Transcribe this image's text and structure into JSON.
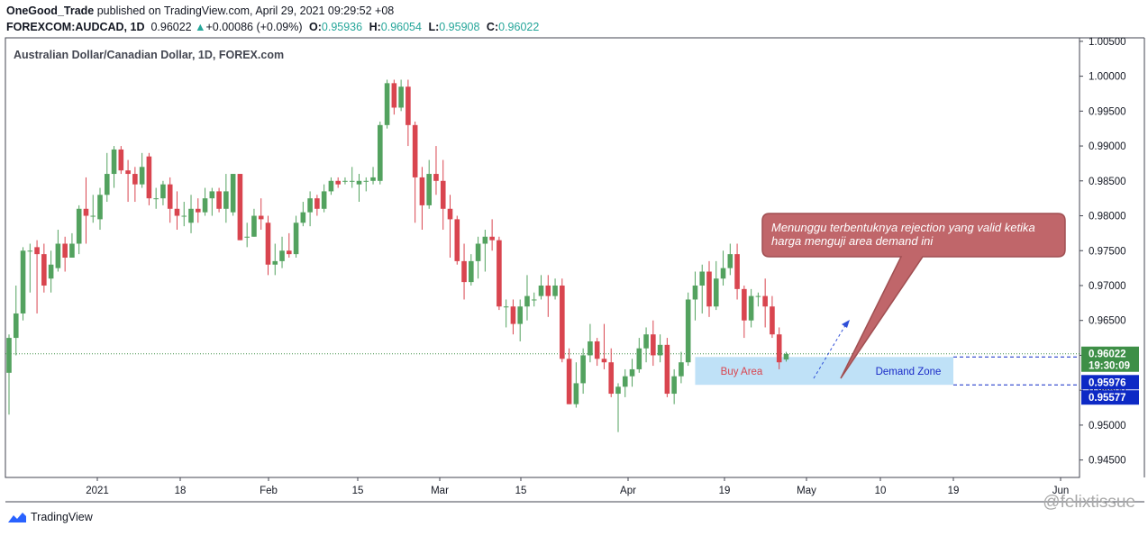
{
  "header": {
    "author": "OneGood_Trade",
    "published_text": "published on TradingView.com, April 29, 2021 09:29:52 +08",
    "symbol_line": "FOREXCOM:AUDCAD, 1D",
    "last": "0.96022",
    "change": "+0.00086 (+0.09%)",
    "o_label": "O:",
    "o": "0.95936",
    "h_label": "H:",
    "h": "0.96054",
    "l_label": "L:",
    "l": "0.95908",
    "c_label": "C:",
    "c": "0.96022"
  },
  "chart_data": {
    "type": "candlestick",
    "title": "Australian Dollar/Canadian Dollar, 1D, FOREX.com",
    "ylim": [
      0.9425,
      1.0055
    ],
    "y_ticks": [
      "1.00500",
      "1.00000",
      "0.99500",
      "0.99000",
      "0.98500",
      "0.98000",
      "0.97500",
      "0.97000",
      "0.96500",
      "0.96000",
      "0.95500",
      "0.95000",
      "0.94500"
    ],
    "x_ticks": [
      "2021",
      "18",
      "Feb",
      "15",
      "Mar",
      "15",
      "Apr",
      "19",
      "May",
      "10",
      "19",
      "Jun"
    ],
    "grid": false,
    "candles": [
      [
        0.9575,
        0.9625,
        0.9515,
        0.963
      ],
      [
        0.9625,
        0.966,
        0.96,
        0.97
      ],
      [
        0.966,
        0.975,
        0.965,
        0.9755
      ],
      [
        0.975,
        0.975,
        0.969,
        0.976
      ],
      [
        0.9755,
        0.9745,
        0.966,
        0.9765
      ],
      [
        0.9745,
        0.97,
        0.969,
        0.976
      ],
      [
        0.971,
        0.973,
        0.969,
        0.975
      ],
      [
        0.9725,
        0.976,
        0.972,
        0.978
      ],
      [
        0.976,
        0.974,
        0.972,
        0.977
      ],
      [
        0.974,
        0.976,
        0.974,
        0.9775
      ],
      [
        0.976,
        0.981,
        0.9745,
        0.9815
      ],
      [
        0.981,
        0.98,
        0.976,
        0.9855
      ],
      [
        0.98,
        0.98,
        0.979,
        0.983
      ],
      [
        0.9795,
        0.983,
        0.978,
        0.984
      ],
      [
        0.983,
        0.986,
        0.982,
        0.989
      ],
      [
        0.986,
        0.9895,
        0.984,
        0.99
      ],
      [
        0.9895,
        0.9865,
        0.986,
        0.99
      ],
      [
        0.9865,
        0.986,
        0.982,
        0.988
      ],
      [
        0.986,
        0.9845,
        0.982,
        0.987
      ],
      [
        0.9845,
        0.987,
        0.984,
        0.989
      ],
      [
        0.9885,
        0.9825,
        0.9815,
        0.989
      ],
      [
        0.9825,
        0.9825,
        0.981,
        0.984
      ],
      [
        0.9825,
        0.9845,
        0.9815,
        0.985
      ],
      [
        0.9845,
        0.981,
        0.979,
        0.9855
      ],
      [
        0.981,
        0.98,
        0.978,
        0.9835
      ],
      [
        0.98,
        0.98,
        0.9785,
        0.982
      ],
      [
        0.979,
        0.981,
        0.9775,
        0.983
      ],
      [
        0.981,
        0.9805,
        0.979,
        0.9825
      ],
      [
        0.9805,
        0.9825,
        0.98,
        0.984
      ],
      [
        0.9825,
        0.9835,
        0.98,
        0.984
      ],
      [
        0.9835,
        0.981,
        0.9805,
        0.984
      ],
      [
        0.981,
        0.9835,
        0.979,
        0.986
      ],
      [
        0.9805,
        0.986,
        0.98,
        0.986
      ],
      [
        0.986,
        0.9765,
        0.9765,
        0.986
      ],
      [
        0.977,
        0.977,
        0.9755,
        0.979
      ],
      [
        0.977,
        0.98,
        0.977,
        0.981
      ],
      [
        0.98,
        0.9795,
        0.978,
        0.9825
      ],
      [
        0.979,
        0.973,
        0.9715,
        0.98
      ],
      [
        0.973,
        0.9735,
        0.9715,
        0.976
      ],
      [
        0.9735,
        0.975,
        0.9725,
        0.977
      ],
      [
        0.975,
        0.9745,
        0.974,
        0.9775
      ],
      [
        0.9745,
        0.979,
        0.974,
        0.98
      ],
      [
        0.979,
        0.9805,
        0.9785,
        0.982
      ],
      [
        0.9805,
        0.9825,
        0.9785,
        0.9835
      ],
      [
        0.9825,
        0.981,
        0.98,
        0.983
      ],
      [
        0.981,
        0.9835,
        0.9805,
        0.9845
      ],
      [
        0.9835,
        0.985,
        0.983,
        0.9855
      ],
      [
        0.985,
        0.9845,
        0.984,
        0.9855
      ],
      [
        0.985,
        0.985,
        0.9845,
        0.9855
      ],
      [
        0.985,
        0.985,
        0.984,
        0.987
      ],
      [
        0.9845,
        0.985,
        0.982,
        0.986
      ],
      [
        0.985,
        0.985,
        0.9835,
        0.9855
      ],
      [
        0.985,
        0.9855,
        0.9845,
        0.987
      ],
      [
        0.985,
        0.993,
        0.9845,
        0.9935
      ],
      [
        0.993,
        0.999,
        0.9925,
        0.9995
      ],
      [
        0.999,
        0.9955,
        0.9945,
        0.9995
      ],
      [
        0.9955,
        0.9985,
        0.995,
        0.9995
      ],
      [
        0.9985,
        0.993,
        0.99,
        0.9995
      ],
      [
        0.993,
        0.9855,
        0.979,
        0.9935
      ],
      [
        0.9855,
        0.9815,
        0.978,
        0.987
      ],
      [
        0.9815,
        0.986,
        0.981,
        0.988
      ],
      [
        0.986,
        0.985,
        0.983,
        0.99
      ],
      [
        0.985,
        0.981,
        0.978,
        0.988
      ],
      [
        0.981,
        0.9795,
        0.974,
        0.983
      ],
      [
        0.9795,
        0.9735,
        0.973,
        0.98
      ],
      [
        0.9735,
        0.9705,
        0.968,
        0.976
      ],
      [
        0.9705,
        0.9735,
        0.97,
        0.9745
      ],
      [
        0.9735,
        0.976,
        0.971,
        0.977
      ],
      [
        0.976,
        0.977,
        0.972,
        0.978
      ],
      [
        0.977,
        0.9765,
        0.975,
        0.9795
      ],
      [
        0.9765,
        0.967,
        0.9665,
        0.977
      ],
      [
        0.967,
        0.967,
        0.964,
        0.968
      ],
      [
        0.967,
        0.9645,
        0.963,
        0.968
      ],
      [
        0.9645,
        0.967,
        0.962,
        0.968
      ],
      [
        0.967,
        0.9685,
        0.965,
        0.9715
      ],
      [
        0.968,
        0.968,
        0.967,
        0.969
      ],
      [
        0.9685,
        0.97,
        0.968,
        0.9715
      ],
      [
        0.97,
        0.9685,
        0.9655,
        0.9715
      ],
      [
        0.9685,
        0.97,
        0.968,
        0.971
      ],
      [
        0.97,
        0.9595,
        0.959,
        0.971
      ],
      [
        0.9595,
        0.953,
        0.953,
        0.961
      ],
      [
        0.953,
        0.956,
        0.9525,
        0.959
      ],
      [
        0.956,
        0.96,
        0.9545,
        0.961
      ],
      [
        0.96,
        0.962,
        0.959,
        0.9645
      ],
      [
        0.962,
        0.9595,
        0.9585,
        0.9625
      ],
      [
        0.9595,
        0.959,
        0.958,
        0.9645
      ],
      [
        0.959,
        0.9545,
        0.954,
        0.961
      ],
      [
        0.9545,
        0.9555,
        0.949,
        0.956
      ],
      [
        0.9555,
        0.957,
        0.954,
        0.958
      ],
      [
        0.957,
        0.958,
        0.9555,
        0.9595
      ],
      [
        0.958,
        0.961,
        0.9575,
        0.9625
      ],
      [
        0.961,
        0.963,
        0.959,
        0.964
      ],
      [
        0.963,
        0.96,
        0.9585,
        0.965
      ],
      [
        0.96,
        0.9615,
        0.959,
        0.963
      ],
      [
        0.9615,
        0.9545,
        0.954,
        0.9625
      ],
      [
        0.9545,
        0.957,
        0.953,
        0.958
      ],
      [
        0.957,
        0.959,
        0.956,
        0.9605
      ],
      [
        0.959,
        0.968,
        0.9585,
        0.969
      ],
      [
        0.968,
        0.97,
        0.965,
        0.972
      ],
      [
        0.97,
        0.972,
        0.966,
        0.973
      ],
      [
        0.972,
        0.967,
        0.9655,
        0.9735
      ],
      [
        0.967,
        0.971,
        0.9665,
        0.9735
      ],
      [
        0.971,
        0.9725,
        0.97,
        0.975
      ],
      [
        0.9725,
        0.9745,
        0.9715,
        0.976
      ],
      [
        0.9745,
        0.9695,
        0.968,
        0.976
      ],
      [
        0.9695,
        0.965,
        0.9625,
        0.97
      ],
      [
        0.965,
        0.9685,
        0.964,
        0.9695
      ],
      [
        0.9685,
        0.9685,
        0.967,
        0.969
      ],
      [
        0.9685,
        0.967,
        0.964,
        0.971
      ],
      [
        0.967,
        0.963,
        0.9625,
        0.9685
      ],
      [
        0.963,
        0.959,
        0.958,
        0.964
      ],
      [
        0.9594,
        0.9602,
        0.9591,
        0.9605
      ]
    ],
    "annotations": {
      "callout_text": "Menunggu terbentuknya rejection yang valid ketika harga menguji area demand ini",
      "zone_label_left": "Buy Area",
      "zone_label_right": "Demand Zone",
      "zone_top": 0.95976,
      "zone_bottom": 0.95577,
      "price_label": "0.96022",
      "countdown": "19:30:09",
      "zone_top_label": "0.95976",
      "zone_bottom_label": "0.95577"
    },
    "colors": {
      "up": "#53a25f",
      "down": "#d9454f",
      "zone": "#bfe1f7",
      "callout": "#c0666a",
      "axis_label_blue": "#0d29c5",
      "price_green": "#3e8f47"
    }
  },
  "footer": {
    "brand": "TradingView",
    "watermark": "@felixtissue"
  }
}
